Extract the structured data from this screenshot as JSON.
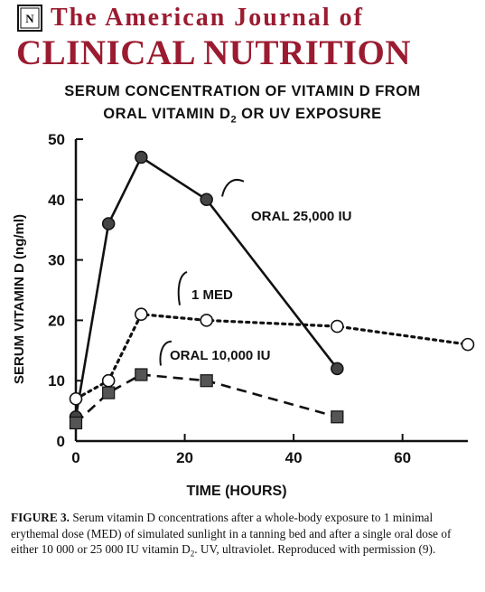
{
  "journal": {
    "name_line1": "The American Journal of",
    "name_line2": "CLINICAL NUTRITION",
    "color": "#9b1b30"
  },
  "chart_data": {
    "type": "line",
    "title_line1": "SERUM CONCENTRATION OF VITAMIN D FROM",
    "title_line2_pre": "ORAL VITAMIN D",
    "title_line2_sub": "2",
    "title_line2_post": " OR UV EXPOSURE",
    "xlabel": "TIME (HOURS)",
    "ylabel": "SERUM VITAMIN D (ng/ml)",
    "xlim": [
      0,
      72
    ],
    "ylim": [
      0,
      50
    ],
    "xticks": [
      0,
      20,
      40,
      60
    ],
    "yticks": [
      0,
      10,
      20,
      30,
      40,
      50
    ],
    "series": [
      {
        "name": "ORAL 25,000 IU",
        "style": "solid",
        "marker": "filled-circle",
        "x": [
          0,
          6,
          12,
          24,
          48
        ],
        "y": [
          4,
          36,
          47,
          40,
          12
        ]
      },
      {
        "name": "1 MED",
        "style": "dotted",
        "marker": "open-circle",
        "x": [
          0,
          6,
          12,
          24,
          48,
          72
        ],
        "y": [
          7,
          10,
          21,
          20,
          19,
          16
        ]
      },
      {
        "name": "ORAL 10,000 IU",
        "style": "dashed",
        "marker": "filled-square",
        "x": [
          0,
          6,
          12,
          24,
          48
        ],
        "y": [
          3,
          8,
          11,
          10,
          4
        ]
      }
    ]
  },
  "caption": {
    "label": "FIGURE 3.",
    "text": " Serum vitamin D concentrations after a whole-body exposure to 1 minimal erythemal dose (MED) of simulated sunlight in a tanning bed and after a single oral dose of either 10 000 or 25 000 IU vitamin D",
    "sub": "2",
    "text_end": ". UV, ultraviolet. Reproduced with permission (9)."
  }
}
